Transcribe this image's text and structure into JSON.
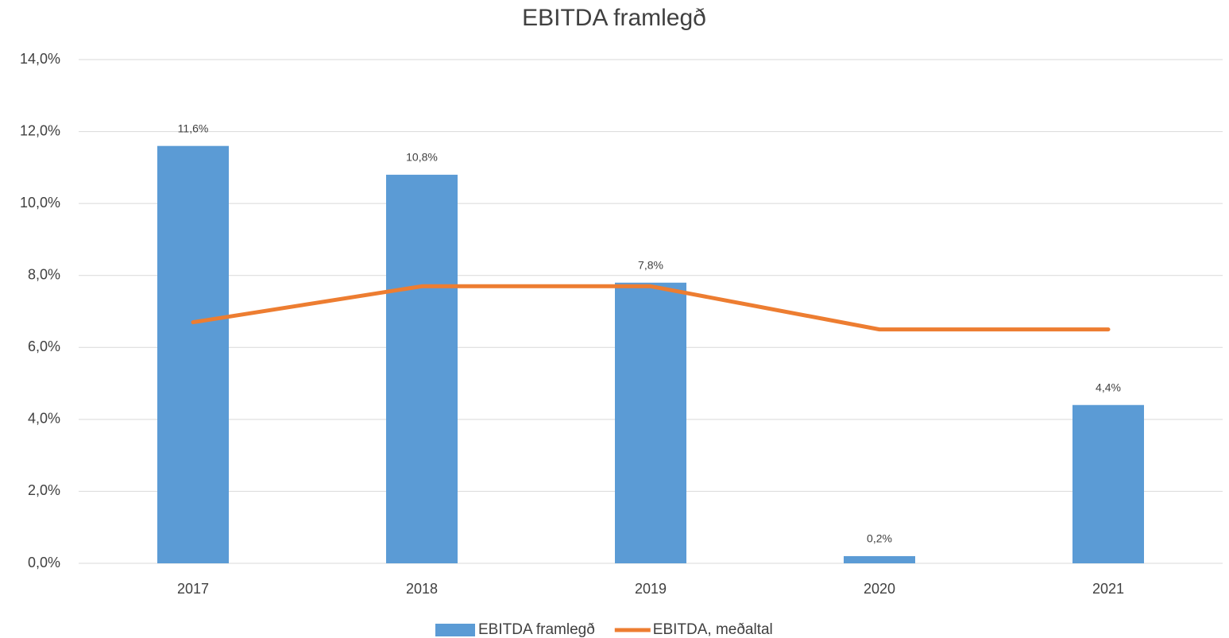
{
  "chart_data": {
    "type": "combo",
    "title": "EBITDA framlegð",
    "categories": [
      "2017",
      "2018",
      "2019",
      "2020",
      "2021"
    ],
    "series": [
      {
        "name": "EBITDA framlegð",
        "type": "bar",
        "color": "#5b9bd5",
        "values": [
          11.6,
          10.8,
          7.8,
          0.2,
          4.4
        ],
        "value_labels": [
          "11,6%",
          "10,8%",
          "7,8%",
          "0,2%",
          "4,4%"
        ]
      },
      {
        "name": "EBITDA, meðaltal",
        "type": "line",
        "color": "#ed7d31",
        "values": [
          6.7,
          7.7,
          7.7,
          6.5,
          6.5
        ]
      }
    ],
    "ylim": [
      0,
      14
    ],
    "yticks": [
      {
        "value": 0,
        "label": "0,0%"
      },
      {
        "value": 2,
        "label": "2,0%"
      },
      {
        "value": 4,
        "label": "4,0%"
      },
      {
        "value": 6,
        "label": "6,0%"
      },
      {
        "value": 8,
        "label": "8,0%"
      },
      {
        "value": 10,
        "label": "10,0%"
      },
      {
        "value": 12,
        "label": "12,0%"
      },
      {
        "value": 14,
        "label": "14,0%"
      }
    ],
    "grid": true,
    "legend": "bottom"
  }
}
